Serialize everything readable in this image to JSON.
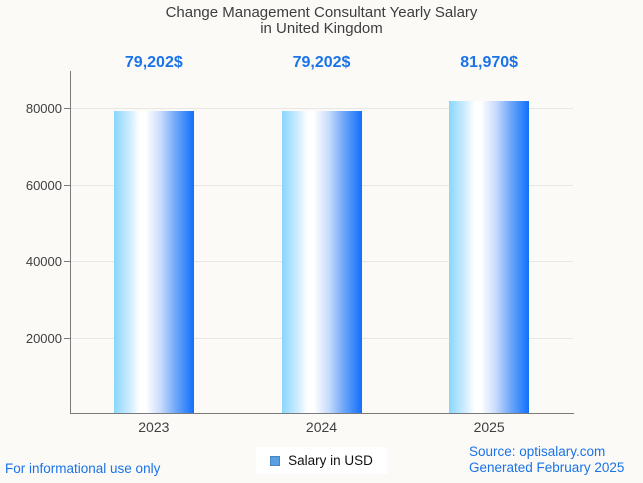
{
  "title": {
    "line1": "Change Management Consultant Yearly Salary",
    "line2": "in United Kingdom"
  },
  "chart_data": {
    "type": "bar",
    "categories": [
      "2023",
      "2024",
      "2025"
    ],
    "series": [
      {
        "name": "Salary in USD",
        "values": [
          79202,
          79202,
          81970
        ]
      }
    ],
    "value_labels": [
      "79,202$",
      "79,202$",
      "81,970$"
    ],
    "title": "Change Management Consultant Yearly Salary in United Kingdom",
    "xlabel": "",
    "ylabel": "",
    "y_ticks": [
      20000,
      40000,
      60000,
      80000
    ],
    "y_tick_labels": [
      "20000",
      "40000",
      "60000",
      "80000"
    ],
    "ylim": [
      0,
      88000
    ],
    "grid": true,
    "legend_position": "bottom",
    "bar_gradient": [
      "#8ad6fd",
      "#ffffff",
      "#1170fa"
    ]
  },
  "legend": {
    "label": "Salary in USD",
    "swatch_color": "#58a0e3"
  },
  "footer": {
    "left": "For informational use only",
    "source": "Source: optisalary.com",
    "generated": "Generated February 2025"
  },
  "colors": {
    "background": "#fbfaf7",
    "accent_text": "#1a73e8",
    "title_text": "#3d3d3d",
    "axis": "#7a7a7a",
    "gridline": "#e8e7e4"
  }
}
